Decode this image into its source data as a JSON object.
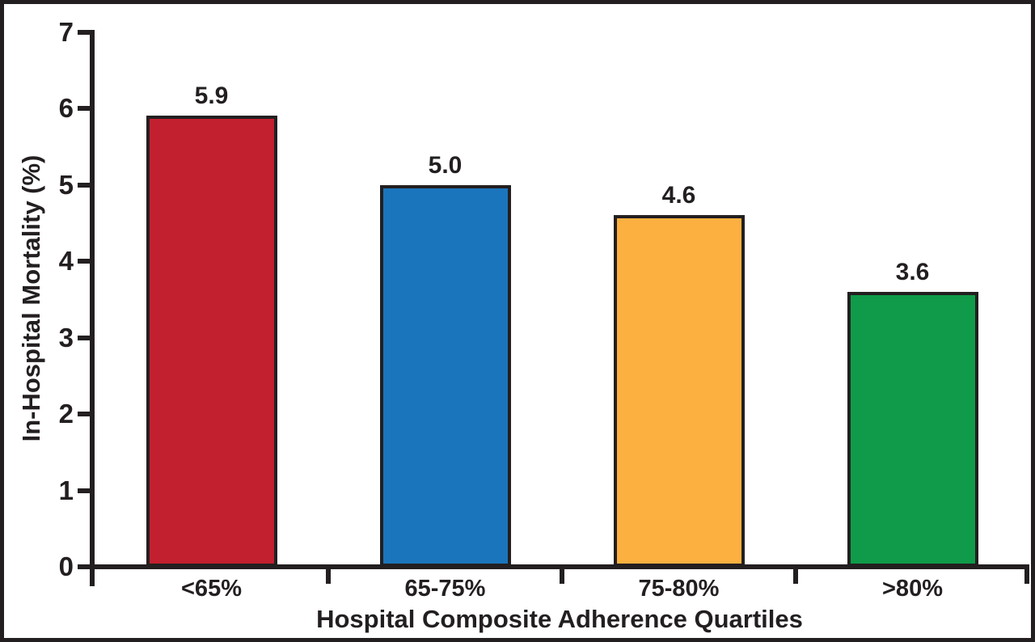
{
  "figure": {
    "background": "#ffffff",
    "frame_color": "#231f20",
    "axis_color": "#231f20",
    "text_color": "#231f20"
  },
  "chart_data": {
    "type": "bar",
    "title": "",
    "categories": [
      "<65%",
      "65-75%",
      "75-80%",
      ">80%"
    ],
    "values": [
      5.9,
      5.0,
      4.6,
      3.6
    ],
    "value_labels": [
      "5.9",
      "5.0",
      "4.6",
      "3.6"
    ],
    "bar_colors": [
      "#c2202f",
      "#1b75bc",
      "#fbb040",
      "#0f9b49"
    ],
    "xlabel": "Hospital Composite Adherence Quartiles",
    "ylabel": "In-Hospital Mortality (%)",
    "ylim": [
      0,
      7
    ],
    "yticks": [
      0,
      1,
      2,
      3,
      4,
      5,
      6,
      7
    ],
    "grid": false,
    "legend": null
  }
}
